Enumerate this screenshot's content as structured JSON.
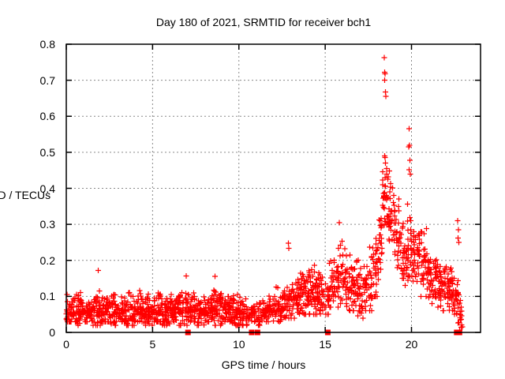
{
  "chart_data": {
    "type": "scatter",
    "title": "Day 180 of 2021, SRMTID for receiver bch1",
    "xlabel": "GPS time / hours",
    "ylabel": "SRMTID / TECUs",
    "xlim": [
      0,
      24
    ],
    "ylim": [
      0,
      0.8
    ],
    "x_ticks": [
      0,
      5,
      10,
      15,
      20
    ],
    "x_tick_labels": [
      "0",
      "5",
      "10",
      "15",
      "20"
    ],
    "y_ticks": [
      0,
      0.1,
      0.2,
      0.3,
      0.4,
      0.5,
      0.6,
      0.7,
      0.8
    ],
    "y_tick_labels": [
      "0",
      "0.1",
      "0.2",
      "0.3",
      "0.4",
      "0.5",
      "0.6",
      "0.7",
      "0.8"
    ],
    "grid": "dashed-both-axes",
    "legend": "none",
    "marker": "plus",
    "marker_color": "#ff0000",
    "grid_color": "#8a8a8a",
    "border_color": "#000000",
    "background_color": "#ffffff",
    "density_bins_comment": "each bin = [x_start, x_end, y_min, y_max, y_center, n_points] read from the plotted band",
    "density_bins": [
      [
        0,
        0.5,
        0.03,
        0.12,
        0.06,
        45
      ],
      [
        0.5,
        1,
        0.02,
        0.14,
        0.06,
        45
      ],
      [
        1,
        1.5,
        0.03,
        0.12,
        0.055,
        45
      ],
      [
        1.5,
        2,
        0.02,
        0.17,
        0.06,
        45
      ],
      [
        2,
        2.5,
        0.03,
        0.15,
        0.06,
        45
      ],
      [
        2.5,
        3,
        0.02,
        0.13,
        0.055,
        45
      ],
      [
        3,
        3.5,
        0.03,
        0.12,
        0.06,
        45
      ],
      [
        3.5,
        4,
        0.02,
        0.16,
        0.06,
        45
      ],
      [
        4,
        4.5,
        0.03,
        0.15,
        0.065,
        45
      ],
      [
        4.5,
        5,
        0.02,
        0.13,
        0.055,
        45
      ],
      [
        5,
        5.5,
        0.03,
        0.14,
        0.06,
        45
      ],
      [
        5.5,
        6,
        0.02,
        0.12,
        0.055,
        45
      ],
      [
        6,
        6.5,
        0.03,
        0.13,
        0.06,
        45
      ],
      [
        6.5,
        7,
        0.02,
        0.16,
        0.06,
        45
      ],
      [
        7,
        7.5,
        0.03,
        0.14,
        0.065,
        45
      ],
      [
        7.5,
        8,
        0.02,
        0.12,
        0.055,
        45
      ],
      [
        8,
        8.5,
        0.03,
        0.13,
        0.06,
        45
      ],
      [
        8.5,
        9,
        0.02,
        0.16,
        0.065,
        45
      ],
      [
        9,
        9.5,
        0.03,
        0.13,
        0.06,
        45
      ],
      [
        9.5,
        10,
        0.02,
        0.15,
        0.06,
        45
      ],
      [
        10,
        10.5,
        0.02,
        0.12,
        0.055,
        40
      ],
      [
        10.5,
        11,
        0.02,
        0.09,
        0.05,
        30
      ],
      [
        11,
        11.5,
        0.02,
        0.1,
        0.05,
        35
      ],
      [
        11.5,
        12,
        0.03,
        0.12,
        0.06,
        40
      ],
      [
        12,
        12.5,
        0.03,
        0.15,
        0.07,
        42
      ],
      [
        12.5,
        13,
        0.04,
        0.16,
        0.08,
        42
      ],
      [
        13,
        13.5,
        0.04,
        0.17,
        0.09,
        42
      ],
      [
        13.5,
        14,
        0.05,
        0.2,
        0.1,
        45
      ],
      [
        14,
        14.5,
        0.05,
        0.24,
        0.11,
        45
      ],
      [
        14.5,
        15,
        0.05,
        0.19,
        0.1,
        42
      ],
      [
        15,
        15.25,
        0.05,
        0.15,
        0.09,
        18
      ],
      [
        15.25,
        15.75,
        0.07,
        0.27,
        0.13,
        35
      ],
      [
        15.75,
        16.25,
        0.08,
        0.31,
        0.15,
        40
      ],
      [
        16.25,
        16.75,
        0.06,
        0.27,
        0.13,
        40
      ],
      [
        16.75,
        17.25,
        0.04,
        0.24,
        0.11,
        40
      ],
      [
        17.25,
        17.75,
        0.06,
        0.28,
        0.14,
        40
      ],
      [
        17.75,
        18.1,
        0.1,
        0.32,
        0.18,
        30
      ],
      [
        18.1,
        18.3,
        0.15,
        0.38,
        0.25,
        20
      ],
      [
        18.3,
        18.65,
        0.25,
        0.5,
        0.37,
        35
      ],
      [
        18.65,
        19,
        0.22,
        0.47,
        0.33,
        32
      ],
      [
        19,
        19.35,
        0.18,
        0.43,
        0.28,
        30
      ],
      [
        19.35,
        19.7,
        0.13,
        0.33,
        0.21,
        30
      ],
      [
        19.7,
        20.1,
        0.13,
        0.4,
        0.23,
        35
      ],
      [
        20.1,
        20.5,
        0.12,
        0.35,
        0.22,
        38
      ],
      [
        20.5,
        21,
        0.1,
        0.33,
        0.18,
        42
      ],
      [
        21,
        21.5,
        0.08,
        0.25,
        0.15,
        42
      ],
      [
        21.5,
        22,
        0.06,
        0.23,
        0.13,
        42
      ],
      [
        22,
        22.4,
        0.05,
        0.2,
        0.12,
        38
      ],
      [
        22.4,
        22.75,
        0.02,
        0.17,
        0.1,
        30
      ],
      [
        22.75,
        22.95,
        0,
        0.12,
        0.05,
        15
      ]
    ],
    "notable_points": [
      [
        0.05,
        0.105
      ],
      [
        1.85,
        0.172
      ],
      [
        6.95,
        0.157
      ],
      [
        8.62,
        0.156
      ],
      [
        12.87,
        0.248
      ],
      [
        12.9,
        0.233
      ],
      [
        15.82,
        0.305
      ],
      [
        18.43,
        0.763
      ],
      [
        18.44,
        0.722
      ],
      [
        18.47,
        0.718
      ],
      [
        18.45,
        0.7
      ],
      [
        18.5,
        0.667
      ],
      [
        18.52,
        0.655
      ],
      [
        18.45,
        0.49
      ],
      [
        18.5,
        0.47
      ],
      [
        19.86,
        0.566
      ],
      [
        19.88,
        0.52
      ],
      [
        19.84,
        0.515
      ],
      [
        19.9,
        0.478
      ],
      [
        19.87,
        0.452
      ],
      [
        19.92,
        0.44
      ],
      [
        22.68,
        0.31
      ],
      [
        22.72,
        0.285
      ],
      [
        22.7,
        0.262
      ],
      [
        22.75,
        0.25
      ]
    ],
    "zero_value_markers_x": [
      7.05,
      10.74,
      11.08,
      15.15,
      22.62,
      22.7,
      22.78
    ]
  }
}
